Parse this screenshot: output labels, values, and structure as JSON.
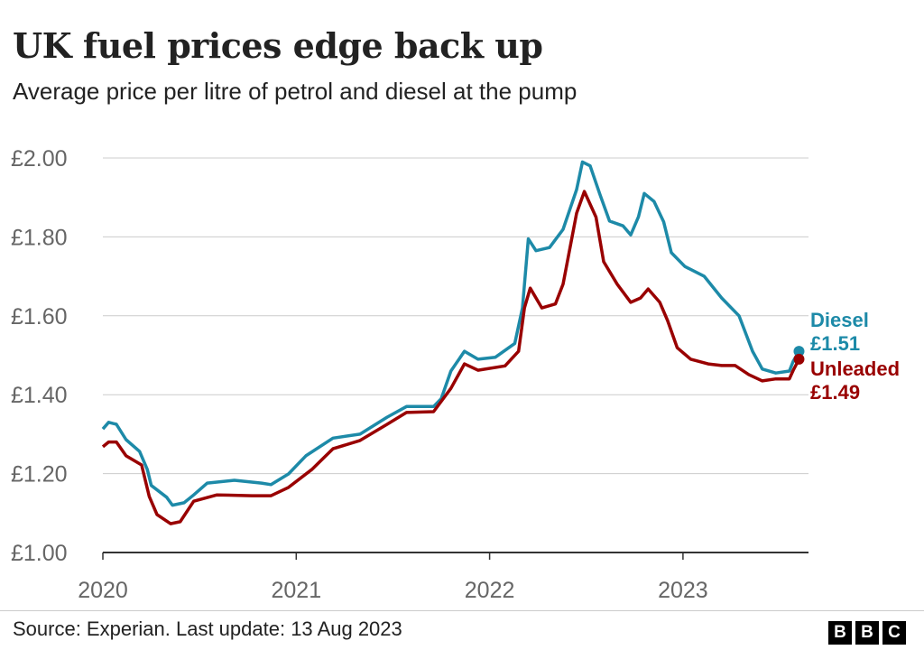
{
  "title": "UK fuel prices edge back up",
  "subtitle": "Average price per litre of petrol and diesel at the pump",
  "source": "Source: Experian. Last update: 13 Aug 2023",
  "logo": "BBC",
  "chart_data": {
    "type": "line",
    "title": "UK fuel prices edge back up",
    "subtitle": "Average price per litre of petrol and diesel at the pump",
    "xlabel": "",
    "ylabel": "",
    "xlim": [
      2020,
      2023.65
    ],
    "ylim": [
      1.0,
      2.0
    ],
    "x_ticks": [
      2020,
      2021,
      2022,
      2023
    ],
    "x_tick_labels": [
      "2020",
      "2021",
      "2022",
      "2023"
    ],
    "y_ticks": [
      1.0,
      1.2,
      1.4,
      1.6,
      1.8,
      2.0
    ],
    "y_tick_labels": [
      "£1.00",
      "£1.20",
      "£1.40",
      "£1.60",
      "£1.80",
      "£2.00"
    ],
    "grid": "horizontal",
    "legend": "direct labels at line ends (right)",
    "series": [
      {
        "name": "Diesel",
        "end_label": "£1.51",
        "color": "#1d8aa8",
        "points": [
          [
            2020.0,
            1.313
          ],
          [
            2020.03,
            1.33
          ],
          [
            2020.07,
            1.325
          ],
          [
            2020.12,
            1.286
          ],
          [
            2020.19,
            1.256
          ],
          [
            2020.23,
            1.21
          ],
          [
            2020.25,
            1.17
          ],
          [
            2020.33,
            1.14
          ],
          [
            2020.36,
            1.12
          ],
          [
            2020.42,
            1.126
          ],
          [
            2020.47,
            1.146
          ],
          [
            2020.54,
            1.176
          ],
          [
            2020.68,
            1.183
          ],
          [
            2020.82,
            1.176
          ],
          [
            2020.87,
            1.172
          ],
          [
            2020.96,
            1.199
          ],
          [
            2021.05,
            1.245
          ],
          [
            2021.19,
            1.29
          ],
          [
            2021.33,
            1.3
          ],
          [
            2021.47,
            1.343
          ],
          [
            2021.57,
            1.37
          ],
          [
            2021.71,
            1.37
          ],
          [
            2021.75,
            1.39
          ],
          [
            2021.8,
            1.46
          ],
          [
            2021.87,
            1.51
          ],
          [
            2021.94,
            1.49
          ],
          [
            2022.03,
            1.495
          ],
          [
            2022.13,
            1.53
          ],
          [
            2022.17,
            1.62
          ],
          [
            2022.2,
            1.795
          ],
          [
            2022.24,
            1.765
          ],
          [
            2022.31,
            1.773
          ],
          [
            2022.38,
            1.819
          ],
          [
            2022.45,
            1.92
          ],
          [
            2022.48,
            1.99
          ],
          [
            2022.52,
            1.98
          ],
          [
            2022.57,
            1.908
          ],
          [
            2022.62,
            1.84
          ],
          [
            2022.69,
            1.828
          ],
          [
            2022.73,
            1.805
          ],
          [
            2022.77,
            1.851
          ],
          [
            2022.8,
            1.91
          ],
          [
            2022.85,
            1.89
          ],
          [
            2022.9,
            1.838
          ],
          [
            2022.94,
            1.76
          ],
          [
            2023.01,
            1.725
          ],
          [
            2023.11,
            1.7
          ],
          [
            2023.2,
            1.645
          ],
          [
            2023.29,
            1.6
          ],
          [
            2023.36,
            1.51
          ],
          [
            2023.41,
            1.465
          ],
          [
            2023.48,
            1.455
          ],
          [
            2023.55,
            1.46
          ],
          [
            2023.57,
            1.485
          ],
          [
            2023.6,
            1.51
          ]
        ]
      },
      {
        "name": "Unleaded",
        "end_label": "£1.49",
        "color": "#990000",
        "points": [
          [
            2020.0,
            1.268
          ],
          [
            2020.03,
            1.28
          ],
          [
            2020.07,
            1.28
          ],
          [
            2020.12,
            1.245
          ],
          [
            2020.2,
            1.222
          ],
          [
            2020.24,
            1.142
          ],
          [
            2020.28,
            1.096
          ],
          [
            2020.35,
            1.073
          ],
          [
            2020.4,
            1.078
          ],
          [
            2020.47,
            1.13
          ],
          [
            2020.59,
            1.146
          ],
          [
            2020.77,
            1.144
          ],
          [
            2020.87,
            1.144
          ],
          [
            2020.96,
            1.165
          ],
          [
            2021.08,
            1.21
          ],
          [
            2021.19,
            1.263
          ],
          [
            2021.33,
            1.284
          ],
          [
            2021.47,
            1.325
          ],
          [
            2021.57,
            1.355
          ],
          [
            2021.71,
            1.357
          ],
          [
            2021.8,
            1.416
          ],
          [
            2021.87,
            1.478
          ],
          [
            2021.94,
            1.462
          ],
          [
            2022.08,
            1.473
          ],
          [
            2022.15,
            1.51
          ],
          [
            2022.18,
            1.62
          ],
          [
            2022.21,
            1.67
          ],
          [
            2022.27,
            1.62
          ],
          [
            2022.34,
            1.63
          ],
          [
            2022.38,
            1.68
          ],
          [
            2022.45,
            1.86
          ],
          [
            2022.49,
            1.915
          ],
          [
            2022.55,
            1.85
          ],
          [
            2022.59,
            1.737
          ],
          [
            2022.66,
            1.68
          ],
          [
            2022.73,
            1.634
          ],
          [
            2022.78,
            1.645
          ],
          [
            2022.82,
            1.668
          ],
          [
            2022.88,
            1.634
          ],
          [
            2022.92,
            1.588
          ],
          [
            2022.97,
            1.519
          ],
          [
            2023.04,
            1.49
          ],
          [
            2023.13,
            1.478
          ],
          [
            2023.2,
            1.474
          ],
          [
            2023.27,
            1.474
          ],
          [
            2023.34,
            1.451
          ],
          [
            2023.41,
            1.435
          ],
          [
            2023.48,
            1.44
          ],
          [
            2023.55,
            1.44
          ],
          [
            2023.57,
            1.462
          ],
          [
            2023.6,
            1.49
          ]
        ]
      }
    ]
  }
}
